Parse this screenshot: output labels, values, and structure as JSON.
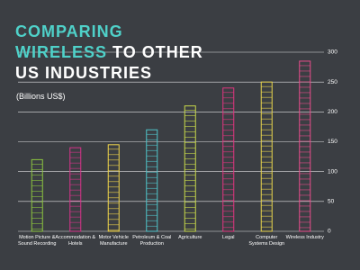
{
  "chart_data": {
    "type": "bar",
    "title_highlight": "COMPARING WIRELESS",
    "title_rest": "TO OTHER US INDUSTRIES",
    "subtitle": "(Billions US$)",
    "categories": [
      "Motion Picture & Sound Recording",
      "Accommodation & Hotels",
      "Motor Vehicle Manufacture",
      "Petroleum & Coal Production",
      "Agriculture",
      "Legal",
      "Computer Systems Design",
      "Wireless Industry"
    ],
    "values": [
      120,
      140,
      145,
      170,
      210,
      240,
      250,
      285
    ],
    "colors": [
      "#8dc63f",
      "#d6338a",
      "#f1d54b",
      "#4fc3c9",
      "#c8d94a",
      "#e0357f",
      "#e8d44d",
      "#e84c8b"
    ],
    "ylim": [
      0,
      300
    ],
    "yticks": [
      0,
      50,
      100,
      150,
      200,
      250,
      300
    ],
    "grid": true
  }
}
